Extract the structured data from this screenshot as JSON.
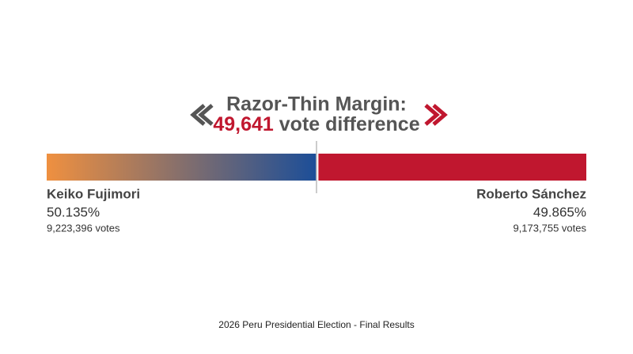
{
  "chart_data": {
    "type": "split_bar",
    "title": "Razor-Thin Margin:",
    "margin_label": "49,641",
    "margin_suffix": "vote difference",
    "margin_color": "#c0172f",
    "xlim": [
      0,
      100
    ],
    "reference_line": 50,
    "series": [
      {
        "name": "Keiko Fujimori",
        "colors": [
          "#ef9040",
          "#1c4e98"
        ],
        "values": [
          50.135
        ],
        "value_labels": [
          "50.135%"
        ],
        "votes_label": "9,223,396 votes"
      },
      {
        "name": "Roberto Sánchez",
        "colors": [
          "#c0172f",
          "#c0172f"
        ],
        "values": [
          49.865
        ],
        "value_labels": [
          "49.865%"
        ],
        "votes_label": "9,173,755 votes"
      }
    ],
    "caption": "2026 Peru Presidential Election - Final Results"
  }
}
